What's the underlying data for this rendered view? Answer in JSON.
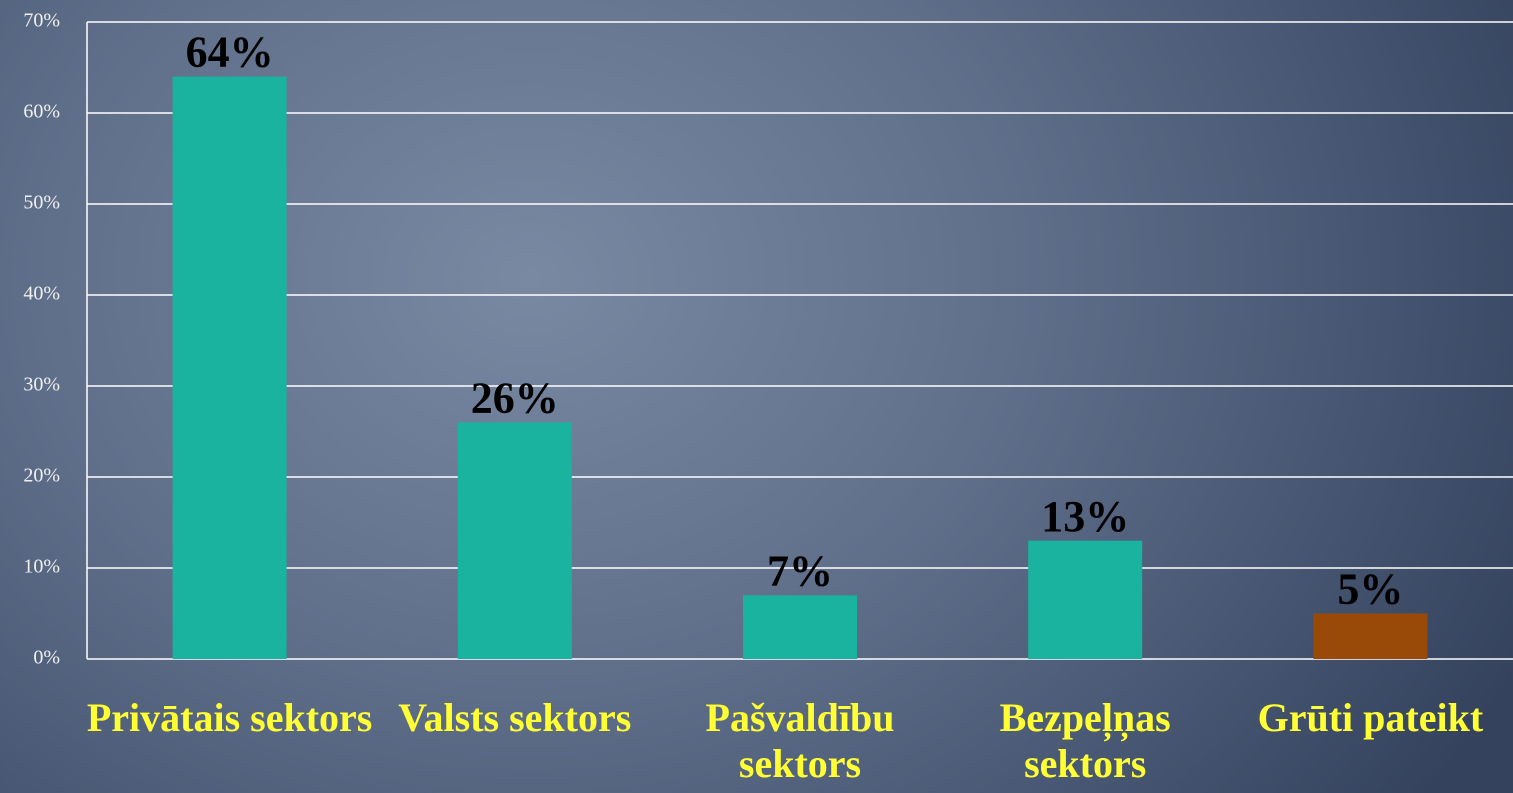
{
  "chart_data": {
    "type": "bar",
    "categories": [
      "Privātais sektors",
      "Valsts sektors",
      "Pašvaldību sektors",
      "Bezpeļņas sektors",
      "Grūti pateikt"
    ],
    "values": [
      64,
      26,
      7,
      13,
      5
    ],
    "value_labels": [
      "64%",
      "26%",
      "7%",
      "13%",
      "5%"
    ],
    "colors": [
      "#1ab39f",
      "#1ab39f",
      "#1ab39f",
      "#1ab39f",
      "#9a4a08"
    ],
    "ylim": [
      0,
      70
    ],
    "yticks": [
      {
        "value": 0,
        "label": "0%"
      },
      {
        "value": 10,
        "label": "10%"
      },
      {
        "value": 20,
        "label": "20%"
      },
      {
        "value": 30,
        "label": "30%"
      },
      {
        "value": 40,
        "label": "40%"
      },
      {
        "value": 50,
        "label": "50%"
      },
      {
        "value": 60,
        "label": "60%"
      },
      {
        "value": 70,
        "label": "70%"
      }
    ],
    "grid": true
  }
}
